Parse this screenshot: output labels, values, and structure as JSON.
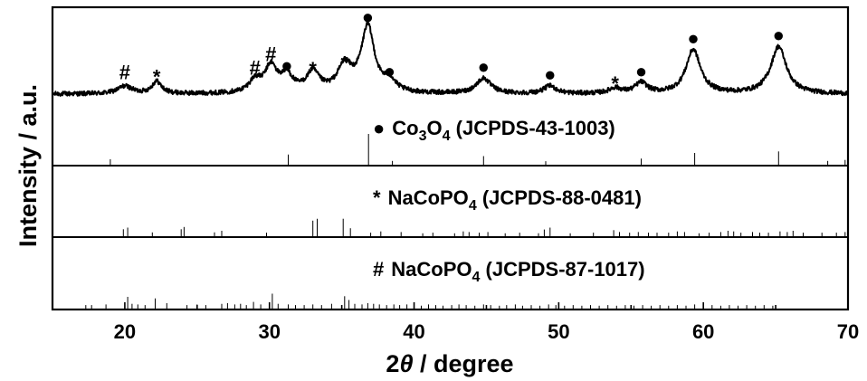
{
  "chart_data": {
    "type": "line",
    "xlabel_prefix": "2",
    "xlabel_theta": "θ",
    "xlabel_suffix": " / degree",
    "ylabel": "Intensity / a.u.",
    "xlim": [
      15,
      70
    ],
    "x_ticks": [
      20,
      30,
      40,
      50,
      60,
      70
    ],
    "grid": false,
    "measured_pattern": {
      "baseline": 10,
      "peaks": [
        {
          "x": 20.0,
          "height": 10,
          "width": 0.6,
          "marker": "#"
        },
        {
          "x": 22.2,
          "height": 16,
          "width": 0.4,
          "marker": "*"
        },
        {
          "x": 29.0,
          "height": 16,
          "width": 0.5,
          "marker": "#"
        },
        {
          "x": 30.1,
          "height": 34,
          "width": 0.5,
          "marker": "#"
        },
        {
          "x": 31.2,
          "height": 22,
          "width": 0.5,
          "marker": "●"
        },
        {
          "x": 33.0,
          "height": 26,
          "width": 0.55,
          "marker": "*"
        },
        {
          "x": 35.2,
          "height": 34,
          "width": 0.6,
          "marker": "*"
        },
        {
          "x": 36.8,
          "height": 86,
          "width": 0.55,
          "marker": "●"
        },
        {
          "x": 38.3,
          "height": 14,
          "width": 0.5,
          "marker": "●"
        },
        {
          "x": 44.8,
          "height": 20,
          "width": 0.6,
          "marker": "●"
        },
        {
          "x": 49.4,
          "height": 10,
          "width": 0.5,
          "marker": "●"
        },
        {
          "x": 53.9,
          "height": 7,
          "width": 0.5,
          "marker": "*"
        },
        {
          "x": 55.7,
          "height": 14,
          "width": 0.5,
          "marker": "●"
        },
        {
          "x": 59.3,
          "height": 58,
          "width": 0.6,
          "marker": "●"
        },
        {
          "x": 65.2,
          "height": 62,
          "width": 0.65,
          "marker": "●"
        }
      ]
    },
    "reference_patterns": [
      {
        "marker": "●",
        "formula_main": "Co",
        "formula_sub1": "3",
        "formula_mid": "O",
        "formula_sub2": "4",
        "card": " (JCPDS-43-1003)",
        "lines": [
          {
            "x": 19.0,
            "i": 20
          },
          {
            "x": 31.3,
            "i": 35
          },
          {
            "x": 36.85,
            "i": 100
          },
          {
            "x": 38.5,
            "i": 15
          },
          {
            "x": 44.8,
            "i": 30
          },
          {
            "x": 49.1,
            "i": 14
          },
          {
            "x": 55.7,
            "i": 22
          },
          {
            "x": 59.4,
            "i": 40
          },
          {
            "x": 65.2,
            "i": 45
          },
          {
            "x": 68.6,
            "i": 15
          },
          {
            "x": 69.8,
            "i": 18
          }
        ]
      },
      {
        "marker": "*",
        "formula_main": "NaCoPO",
        "formula_sub1": "4",
        "formula_mid": "",
        "formula_sub2": "",
        "card": " (JCPDS-88-0481)",
        "lines": [
          {
            "x": 19.9,
            "i": 25
          },
          {
            "x": 20.2,
            "i": 30
          },
          {
            "x": 21.9,
            "i": 15
          },
          {
            "x": 23.9,
            "i": 25
          },
          {
            "x": 24.1,
            "i": 32
          },
          {
            "x": 26.2,
            "i": 15
          },
          {
            "x": 26.7,
            "i": 20
          },
          {
            "x": 29.8,
            "i": 14
          },
          {
            "x": 33.0,
            "i": 52
          },
          {
            "x": 33.3,
            "i": 58
          },
          {
            "x": 35.1,
            "i": 58
          },
          {
            "x": 35.6,
            "i": 28
          },
          {
            "x": 37.0,
            "i": 14
          },
          {
            "x": 37.7,
            "i": 18
          },
          {
            "x": 39.1,
            "i": 16
          },
          {
            "x": 40.6,
            "i": 12
          },
          {
            "x": 41.3,
            "i": 14
          },
          {
            "x": 42.8,
            "i": 12
          },
          {
            "x": 43.4,
            "i": 18
          },
          {
            "x": 43.8,
            "i": 16
          },
          {
            "x": 44.5,
            "i": 14
          },
          {
            "x": 45.1,
            "i": 16
          },
          {
            "x": 46.3,
            "i": 12
          },
          {
            "x": 47.3,
            "i": 14
          },
          {
            "x": 48.6,
            "i": 12
          },
          {
            "x": 49.0,
            "i": 24
          },
          {
            "x": 49.4,
            "i": 30
          },
          {
            "x": 50.8,
            "i": 12
          },
          {
            "x": 52.4,
            "i": 14
          },
          {
            "x": 53.8,
            "i": 22
          },
          {
            "x": 54.2,
            "i": 16
          },
          {
            "x": 54.9,
            "i": 14
          },
          {
            "x": 55.5,
            "i": 16
          },
          {
            "x": 56.2,
            "i": 14
          },
          {
            "x": 56.8,
            "i": 14
          },
          {
            "x": 57.6,
            "i": 14
          },
          {
            "x": 58.2,
            "i": 18
          },
          {
            "x": 58.7,
            "i": 16
          },
          {
            "x": 59.7,
            "i": 12
          },
          {
            "x": 60.4,
            "i": 14
          },
          {
            "x": 61.2,
            "i": 16
          },
          {
            "x": 61.7,
            "i": 20
          },
          {
            "x": 62.1,
            "i": 18
          },
          {
            "x": 62.6,
            "i": 14
          },
          {
            "x": 63.4,
            "i": 16
          },
          {
            "x": 63.9,
            "i": 14
          },
          {
            "x": 64.5,
            "i": 14
          },
          {
            "x": 65.3,
            "i": 18
          },
          {
            "x": 65.8,
            "i": 16
          },
          {
            "x": 66.2,
            "i": 20
          },
          {
            "x": 66.9,
            "i": 14
          },
          {
            "x": 68.2,
            "i": 14
          },
          {
            "x": 69.2,
            "i": 14
          },
          {
            "x": 69.8,
            "i": 16
          }
        ]
      },
      {
        "marker": "#",
        "formula_main": "NaCoPO",
        "formula_sub1": "4",
        "formula_mid": "",
        "formula_sub2": "",
        "card": " (JCPDS-87-1017)",
        "lines": [
          {
            "x": 17.3,
            "i": 14
          },
          {
            "x": 17.7,
            "i": 14
          },
          {
            "x": 18.7,
            "i": 16
          },
          {
            "x": 20.2,
            "i": 40
          },
          {
            "x": 20.5,
            "i": 18
          },
          {
            "x": 20.9,
            "i": 16
          },
          {
            "x": 21.4,
            "i": 14
          },
          {
            "x": 22.1,
            "i": 35
          },
          {
            "x": 22.9,
            "i": 20
          },
          {
            "x": 24.3,
            "i": 14
          },
          {
            "x": 25.0,
            "i": 16
          },
          {
            "x": 25.6,
            "i": 14
          },
          {
            "x": 26.7,
            "i": 18
          },
          {
            "x": 27.1,
            "i": 20
          },
          {
            "x": 27.6,
            "i": 16
          },
          {
            "x": 28.0,
            "i": 18
          },
          {
            "x": 28.4,
            "i": 14
          },
          {
            "x": 28.9,
            "i": 24
          },
          {
            "x": 29.4,
            "i": 16
          },
          {
            "x": 30.2,
            "i": 50
          },
          {
            "x": 30.6,
            "i": 18
          },
          {
            "x": 31.3,
            "i": 16
          },
          {
            "x": 31.8,
            "i": 14
          },
          {
            "x": 32.4,
            "i": 14
          },
          {
            "x": 33.0,
            "i": 16
          },
          {
            "x": 33.6,
            "i": 14
          },
          {
            "x": 34.3,
            "i": 18
          },
          {
            "x": 35.2,
            "i": 42
          },
          {
            "x": 35.5,
            "i": 30
          },
          {
            "x": 35.9,
            "i": 18
          },
          {
            "x": 36.4,
            "i": 16
          },
          {
            "x": 36.8,
            "i": 20
          },
          {
            "x": 37.2,
            "i": 18
          },
          {
            "x": 37.6,
            "i": 16
          },
          {
            "x": 38.1,
            "i": 14
          },
          {
            "x": 38.6,
            "i": 16
          },
          {
            "x": 39.0,
            "i": 14
          },
          {
            "x": 39.5,
            "i": 16
          },
          {
            "x": 40.0,
            "i": 14
          },
          {
            "x": 40.5,
            "i": 12
          },
          {
            "x": 41.0,
            "i": 16
          },
          {
            "x": 41.5,
            "i": 14
          },
          {
            "x": 42.0,
            "i": 12
          },
          {
            "x": 42.6,
            "i": 14
          },
          {
            "x": 43.1,
            "i": 16
          },
          {
            "x": 43.6,
            "i": 14
          },
          {
            "x": 44.2,
            "i": 12
          },
          {
            "x": 44.8,
            "i": 16
          },
          {
            "x": 45.3,
            "i": 14
          },
          {
            "x": 45.9,
            "i": 12
          },
          {
            "x": 46.4,
            "i": 14
          },
          {
            "x": 47.0,
            "i": 16
          },
          {
            "x": 47.5,
            "i": 12
          },
          {
            "x": 48.1,
            "i": 14
          },
          {
            "x": 48.7,
            "i": 12
          },
          {
            "x": 49.3,
            "i": 16
          },
          {
            "x": 49.8,
            "i": 14
          },
          {
            "x": 50.4,
            "i": 12
          },
          {
            "x": 51.0,
            "i": 14
          },
          {
            "x": 51.6,
            "i": 12
          },
          {
            "x": 52.2,
            "i": 14
          },
          {
            "x": 52.8,
            "i": 12
          },
          {
            "x": 53.4,
            "i": 14
          },
          {
            "x": 54.0,
            "i": 12
          },
          {
            "x": 54.6,
            "i": 14
          },
          {
            "x": 55.2,
            "i": 12
          },
          {
            "x": 55.8,
            "i": 14
          },
          {
            "x": 56.4,
            "i": 12
          },
          {
            "x": 57.0,
            "i": 14
          },
          {
            "x": 57.6,
            "i": 12
          },
          {
            "x": 58.2,
            "i": 14
          },
          {
            "x": 58.8,
            "i": 12
          },
          {
            "x": 59.4,
            "i": 16
          },
          {
            "x": 60.0,
            "i": 12
          },
          {
            "x": 60.6,
            "i": 14
          },
          {
            "x": 61.2,
            "i": 12
          },
          {
            "x": 61.8,
            "i": 14
          },
          {
            "x": 62.4,
            "i": 12
          },
          {
            "x": 63.0,
            "i": 14
          },
          {
            "x": 63.6,
            "i": 12
          },
          {
            "x": 64.2,
            "i": 14
          },
          {
            "x": 64.8,
            "i": 12
          }
        ]
      }
    ]
  }
}
